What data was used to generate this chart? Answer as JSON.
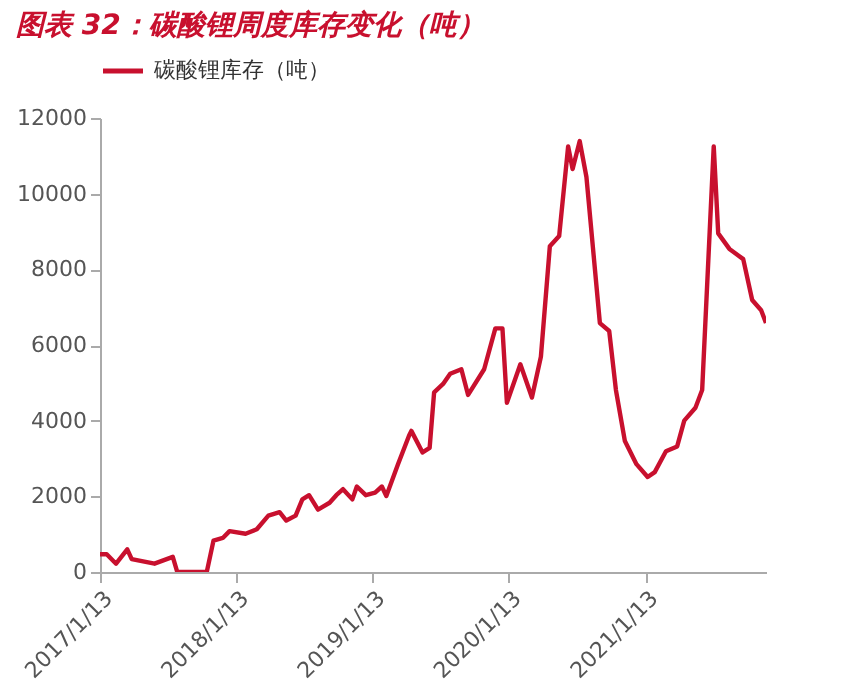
{
  "chart_data": {
    "type": "line",
    "title": "图表 32：碳酸锂周度库存变化（吨）",
    "x": [
      "2017-01-13",
      "2017-01-31",
      "2017-02-25",
      "2017-03-27",
      "2017-04-08",
      "2017-06-08",
      "2017-07-27",
      "2017-08-08",
      "2017-10-26",
      "2017-11-13",
      "2017-12-08",
      "2017-12-26",
      "2018-02-07",
      "2018-03-09",
      "2018-04-09",
      "2018-05-09",
      "2018-05-27",
      "2018-06-21",
      "2018-07-09",
      "2018-07-27",
      "2018-08-20",
      "2018-09-20",
      "2018-10-08",
      "2018-10-26",
      "2018-11-20",
      "2018-12-02",
      "2018-12-26",
      "2019-01-20",
      "2019-02-07",
      "2019-02-19",
      "2019-03-22",
      "2019-04-21",
      "2019-04-27",
      "2019-05-27",
      "2019-06-15",
      "2019-06-27",
      "2019-07-21",
      "2019-08-09",
      "2019-09-08",
      "2019-09-26",
      "2019-11-08",
      "2019-12-08",
      "2019-12-27",
      "2020-01-08",
      "2020-02-13",
      "2020-03-15",
      "2020-04-08",
      "2020-05-02",
      "2020-05-27",
      "2020-06-20",
      "2020-07-02",
      "2020-07-21",
      "2020-08-08",
      "2020-09-13",
      "2020-10-08",
      "2020-10-26",
      "2020-11-19",
      "2020-12-20",
      "2021-01-19",
      "2021-02-07",
      "2021-03-09",
      "2021-04-08",
      "2021-04-27",
      "2021-05-27",
      "2021-06-14",
      "2021-07-15",
      "2021-07-27",
      "2021-08-26",
      "2021-10-02",
      "2021-10-26",
      "2021-11-19",
      "2021-12-02"
    ],
    "series": [
      {
        "name": "碳酸锂库存（吨）",
        "color": "#c8102e",
        "values": [
          470,
          470,
          220,
          600,
          340,
          220,
          400,
          0,
          0,
          830,
          900,
          1080,
          1010,
          1130,
          1490,
          1580,
          1360,
          1490,
          1920,
          2030,
          1650,
          1830,
          2030,
          2190,
          1920,
          2260,
          2030,
          2100,
          2260,
          2010,
          2840,
          3610,
          3730,
          3160,
          3280,
          4750,
          4970,
          5240,
          5360,
          4680,
          5360,
          6440,
          6440,
          4470,
          5490,
          4610,
          5690,
          8610,
          8880,
          11250,
          10650,
          11390,
          10440,
          6580,
          6370,
          4810,
          3460,
          2850,
          2510,
          2640,
          3190,
          3320,
          4000,
          4340,
          4810,
          11250,
          8950,
          8540,
          8270,
          7190,
          6920,
          6580
        ]
      }
    ],
    "xlim": [
      "2017-01-13",
      "2021-12-02"
    ],
    "xticks": [
      {
        "value": "2017-01-13",
        "label": "2017/1/13"
      },
      {
        "value": "2018-01-13",
        "label": "2018/1/13"
      },
      {
        "value": "2019-01-13",
        "label": "2019/1/13"
      },
      {
        "value": "2020-01-13",
        "label": "2020/1/13"
      },
      {
        "value": "2021-01-13",
        "label": "2021/1/13"
      }
    ],
    "ylim": [
      0,
      12000
    ],
    "yticks": [
      0,
      2000,
      4000,
      6000,
      8000,
      10000,
      12000
    ],
    "grid": false,
    "legend": "top",
    "marker": "none",
    "line_style": "solid"
  }
}
